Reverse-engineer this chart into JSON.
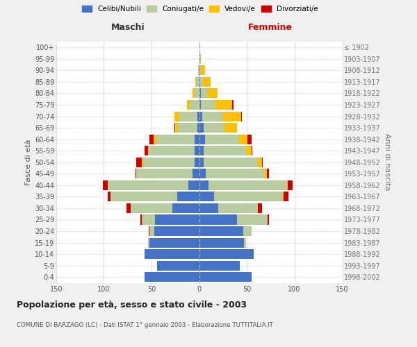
{
  "age_groups": [
    "0-4",
    "5-9",
    "10-14",
    "15-19",
    "20-24",
    "25-29",
    "30-34",
    "35-39",
    "40-44",
    "45-49",
    "50-54",
    "55-59",
    "60-64",
    "65-69",
    "70-74",
    "75-79",
    "80-84",
    "85-89",
    "90-94",
    "95-99",
    "100+"
  ],
  "birth_years": [
    "1998-2002",
    "1993-1997",
    "1988-1992",
    "1983-1987",
    "1978-1982",
    "1973-1977",
    "1968-1972",
    "1963-1967",
    "1958-1962",
    "1953-1957",
    "1948-1952",
    "1943-1947",
    "1938-1942",
    "1933-1937",
    "1928-1932",
    "1923-1927",
    "1918-1922",
    "1913-1917",
    "1908-1912",
    "1903-1907",
    "≤ 1902"
  ],
  "male": {
    "celibe": [
      57,
      44,
      57,
      52,
      47,
      46,
      28,
      23,
      11,
      7,
      5,
      5,
      5,
      2,
      2,
      0,
      0,
      0,
      0,
      0,
      0
    ],
    "coniugato": [
      0,
      0,
      0,
      2,
      5,
      14,
      44,
      70,
      85,
      59,
      54,
      48,
      40,
      20,
      19,
      10,
      5,
      3,
      1,
      0,
      0
    ],
    "vedovo": [
      0,
      0,
      0,
      0,
      0,
      0,
      0,
      0,
      0,
      0,
      1,
      1,
      3,
      3,
      5,
      3,
      2,
      1,
      0,
      0,
      0
    ],
    "divorziato": [
      0,
      0,
      0,
      0,
      1,
      2,
      4,
      3,
      5,
      1,
      6,
      3,
      4,
      1,
      0,
      0,
      0,
      0,
      0,
      0,
      0
    ]
  },
  "female": {
    "nubile": [
      55,
      43,
      57,
      47,
      46,
      40,
      20,
      16,
      10,
      7,
      5,
      5,
      6,
      5,
      3,
      2,
      2,
      1,
      1,
      1,
      0
    ],
    "coniugata": [
      0,
      0,
      0,
      2,
      9,
      32,
      42,
      72,
      82,
      61,
      57,
      44,
      36,
      22,
      22,
      15,
      7,
      3,
      1,
      0,
      0
    ],
    "vedova": [
      0,
      0,
      0,
      0,
      0,
      0,
      0,
      1,
      1,
      3,
      4,
      6,
      9,
      13,
      19,
      18,
      10,
      8,
      4,
      1,
      0
    ],
    "divorziata": [
      0,
      0,
      0,
      0,
      0,
      1,
      4,
      5,
      5,
      2,
      1,
      1,
      4,
      0,
      1,
      1,
      0,
      0,
      0,
      0,
      0
    ]
  },
  "colors": {
    "celibe": "#4472c4",
    "coniugato": "#b8cca0",
    "vedovo": "#ffc000",
    "divorziato": "#cc0000"
  },
  "legend_labels": [
    "Celibi/Nubili",
    "Coniugati/e",
    "Vedovi/e",
    "Divorziati/e"
  ],
  "title": "Popolazione per età, sesso e stato civile - 2003",
  "subtitle": "COMUNE DI BARZAGO (LC) - Dati ISTAT 1° gennaio 2003 - Elaborazione TUTTITALIA.IT",
  "ylabel_left": "Fasce di età",
  "ylabel_right": "Anni di nascita",
  "xlabel_left": "Maschi",
  "xlabel_right": "Femmine",
  "xlim": 150,
  "bg_color": "#f0f0f0",
  "plot_bg_color": "#ffffff",
  "grid_color": "#cccccc"
}
